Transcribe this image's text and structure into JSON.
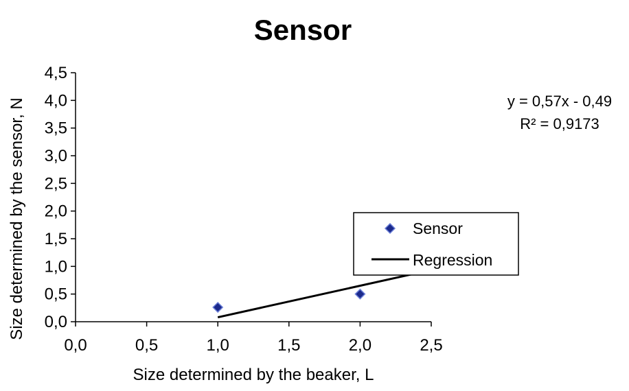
{
  "chart_data": {
    "type": "scatter",
    "title": "Sensor",
    "xlabel": "Size determined by the beaker, L",
    "ylabel": "Size determined by the sensor, N",
    "xlim": [
      0,
      2.5
    ],
    "ylim": [
      0,
      4.5
    ],
    "x_ticks": [
      "0,0",
      "0,5",
      "1,0",
      "1,5",
      "2,0",
      "2,5"
    ],
    "y_ticks": [
      "0,0",
      "0,5",
      "1,0",
      "1,5",
      "2,0",
      "2,5",
      "3,0",
      "3,5",
      "4,0",
      "4,5"
    ],
    "grid": false,
    "legend": {
      "placement": "right",
      "entries": [
        "Sensor",
        "Regression"
      ]
    },
    "series": [
      {
        "name": "Sensor",
        "type": "scatter",
        "marker": "diamond",
        "color": "#1c2a8c",
        "points": [
          {
            "x": 1.0,
            "y": 0.26
          },
          {
            "x": 2.0,
            "y": 0.5
          }
        ]
      },
      {
        "name": "Regression",
        "type": "line",
        "color": "#000000",
        "slope": 0.57,
        "intercept": -0.49,
        "x_range": [
          1.0,
          2.5
        ]
      }
    ],
    "annotations": [
      "y = 0,57x - 0,49",
      "R² = 0,9173"
    ]
  }
}
